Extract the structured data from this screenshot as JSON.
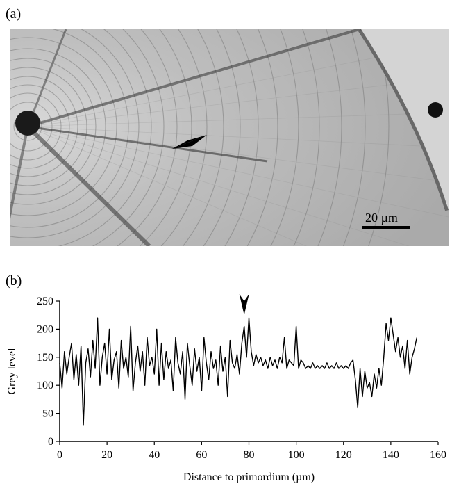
{
  "figure": {
    "panel_a_label": "(a)",
    "panel_b_label": "(b)",
    "scale_bar_label": "20 µm"
  },
  "chart_data": {
    "type": "line",
    "xlabel": "Distance to primordium (µm)",
    "ylabel": "Grey level",
    "xlim": [
      0,
      160
    ],
    "ylim": [
      0,
      250
    ],
    "xticks": [
      0,
      20,
      40,
      60,
      80,
      100,
      120,
      140,
      160
    ],
    "yticks": [
      0,
      50,
      100,
      150,
      200,
      250
    ],
    "grid": false,
    "series": [
      {
        "name": "",
        "x": [
          0,
          1,
          2,
          3,
          4,
          5,
          6,
          7,
          8,
          9,
          10,
          11,
          12,
          13,
          14,
          15,
          16,
          17,
          18,
          19,
          20,
          21,
          22,
          23,
          24,
          25,
          26,
          27,
          28,
          29,
          30,
          31,
          32,
          33,
          34,
          35,
          36,
          37,
          38,
          39,
          40,
          41,
          42,
          43,
          44,
          45,
          46,
          47,
          48,
          49,
          50,
          51,
          52,
          53,
          54,
          55,
          56,
          57,
          58,
          59,
          60,
          61,
          62,
          63,
          64,
          65,
          66,
          67,
          68,
          69,
          70,
          71,
          72,
          73,
          74,
          75,
          76,
          77,
          78,
          79,
          80,
          81,
          82,
          83,
          84,
          85,
          86,
          87,
          88,
          89,
          90,
          91,
          92,
          93,
          94,
          95,
          96,
          97,
          98,
          99,
          100,
          101,
          102,
          103,
          104,
          105,
          106,
          107,
          108,
          109,
          110,
          111,
          112,
          113,
          114,
          115,
          116,
          117,
          118,
          119,
          120,
          121,
          122,
          123,
          124,
          125,
          126,
          127,
          128,
          129,
          130,
          131,
          132,
          133,
          134,
          135,
          136,
          137,
          138,
          139,
          140,
          141,
          142,
          143,
          144,
          145,
          146,
          147,
          148,
          149,
          150,
          151
        ],
        "values": [
          140,
          95,
          160,
          120,
          150,
          175,
          110,
          155,
          100,
          170,
          30,
          140,
          165,
          115,
          180,
          130,
          220,
          100,
          150,
          175,
          120,
          200,
          110,
          145,
          160,
          95,
          180,
          130,
          150,
          115,
          205,
          90,
          140,
          170,
          125,
          160,
          100,
          185,
          135,
          150,
          120,
          200,
          100,
          175,
          110,
          160,
          130,
          145,
          90,
          185,
          140,
          120,
          160,
          75,
          175,
          135,
          100,
          165,
          125,
          150,
          90,
          185,
          140,
          110,
          160,
          130,
          145,
          100,
          170,
          125,
          150,
          80,
          180,
          140,
          130,
          155,
          120,
          175,
          205,
          150,
          220,
          160,
          135,
          155,
          140,
          150,
          135,
          145,
          130,
          150,
          135,
          145,
          130,
          150,
          140,
          185,
          130,
          145,
          140,
          135,
          205,
          130,
          145,
          140,
          130,
          135,
          130,
          140,
          130,
          135,
          130,
          135,
          130,
          140,
          130,
          135,
          130,
          140,
          130,
          135,
          130,
          135,
          130,
          140,
          145,
          110,
          60,
          130,
          80,
          125,
          95,
          105,
          80,
          120,
          95,
          130,
          100,
          150,
          210,
          180,
          220,
          190,
          160,
          185,
          150,
          170,
          130,
          180,
          120,
          150,
          165,
          185
        ]
      }
    ],
    "annotations": [
      {
        "type": "arrowhead",
        "x": 78,
        "direction": "down"
      }
    ]
  }
}
